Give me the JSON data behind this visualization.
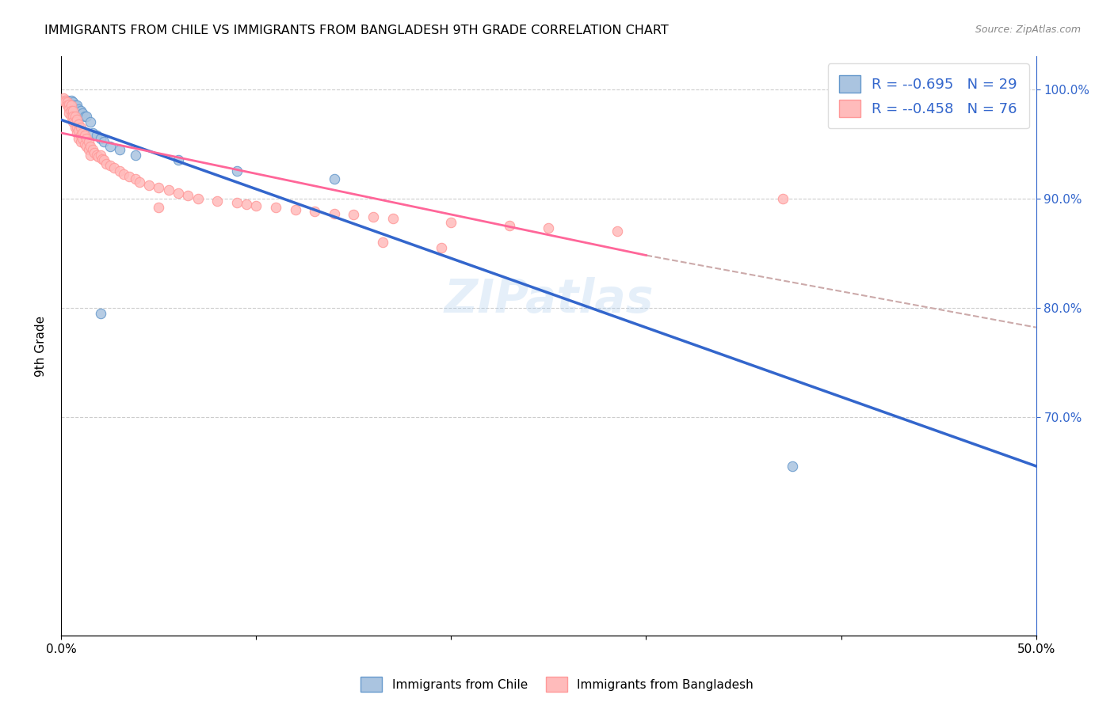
{
  "title": "IMMIGRANTS FROM CHILE VS IMMIGRANTS FROM BANGLADESH 9TH GRADE CORRELATION CHART",
  "source": "Source: ZipAtlas.com",
  "ylabel": "9th Grade",
  "xlim": [
    0.0,
    0.5
  ],
  "ylim": [
    0.5,
    1.03
  ],
  "x_ticks": [
    0.0,
    0.1,
    0.2,
    0.3,
    0.4,
    0.5
  ],
  "x_tick_labels": [
    "0.0%",
    "",
    "",
    "",
    "",
    "50.0%"
  ],
  "y_ticks_right": [
    0.7,
    0.8,
    0.9,
    1.0
  ],
  "y_tick_labels_right": [
    "70.0%",
    "80.0%",
    "90.0%",
    "100.0%"
  ],
  "legend_r_chile": "-0.695",
  "legend_n_chile": "N = 29",
  "legend_r_bangladesh": "-0.458",
  "legend_n_bangladesh": "N = 76",
  "color_chile_edge": "#6699CC",
  "color_chile_fill": "#aac4e0",
  "color_bangladesh_edge": "#FF9999",
  "color_bangladesh_fill": "#ffbbbb",
  "color_trendline_chile": "#3366CC",
  "color_trendline_bangladesh": "#FF6699",
  "color_dashed": "#ccaaaa",
  "color_right_axis": "#3366CC",
  "watermark": "ZIPatlas",
  "chile_points": [
    [
      0.002,
      0.99
    ],
    [
      0.003,
      0.99
    ],
    [
      0.004,
      0.988
    ],
    [
      0.005,
      0.99
    ],
    [
      0.005,
      0.985
    ],
    [
      0.006,
      0.988
    ],
    [
      0.006,
      0.985
    ],
    [
      0.007,
      0.985
    ],
    [
      0.007,
      0.982
    ],
    [
      0.008,
      0.985
    ],
    [
      0.008,
      0.98
    ],
    [
      0.009,
      0.982
    ],
    [
      0.01,
      0.98
    ],
    [
      0.011,
      0.978
    ],
    [
      0.012,
      0.975
    ],
    [
      0.013,
      0.975
    ],
    [
      0.015,
      0.97
    ],
    [
      0.016,
      0.96
    ],
    [
      0.018,
      0.958
    ],
    [
      0.02,
      0.955
    ],
    [
      0.022,
      0.952
    ],
    [
      0.025,
      0.948
    ],
    [
      0.03,
      0.945
    ],
    [
      0.038,
      0.94
    ],
    [
      0.06,
      0.935
    ],
    [
      0.09,
      0.925
    ],
    [
      0.14,
      0.918
    ],
    [
      0.02,
      0.795
    ],
    [
      0.375,
      0.655
    ]
  ],
  "bangladesh_points": [
    [
      0.001,
      0.992
    ],
    [
      0.002,
      0.99
    ],
    [
      0.002,
      0.988
    ],
    [
      0.003,
      0.988
    ],
    [
      0.003,
      0.985
    ],
    [
      0.004,
      0.986
    ],
    [
      0.004,
      0.982
    ],
    [
      0.004,
      0.978
    ],
    [
      0.005,
      0.985
    ],
    [
      0.005,
      0.98
    ],
    [
      0.005,
      0.975
    ],
    [
      0.006,
      0.98
    ],
    [
      0.006,
      0.975
    ],
    [
      0.006,
      0.97
    ],
    [
      0.007,
      0.975
    ],
    [
      0.007,
      0.97
    ],
    [
      0.007,
      0.965
    ],
    [
      0.008,
      0.972
    ],
    [
      0.008,
      0.965
    ],
    [
      0.008,
      0.96
    ],
    [
      0.009,
      0.968
    ],
    [
      0.009,
      0.962
    ],
    [
      0.009,
      0.955
    ],
    [
      0.01,
      0.965
    ],
    [
      0.01,
      0.958
    ],
    [
      0.01,
      0.952
    ],
    [
      0.011,
      0.96
    ],
    [
      0.011,
      0.955
    ],
    [
      0.012,
      0.958
    ],
    [
      0.012,
      0.95
    ],
    [
      0.013,
      0.955
    ],
    [
      0.013,
      0.948
    ],
    [
      0.014,
      0.952
    ],
    [
      0.014,
      0.945
    ],
    [
      0.015,
      0.948
    ],
    [
      0.015,
      0.94
    ],
    [
      0.016,
      0.945
    ],
    [
      0.017,
      0.942
    ],
    [
      0.018,
      0.94
    ],
    [
      0.019,
      0.938
    ],
    [
      0.02,
      0.94
    ],
    [
      0.021,
      0.936
    ],
    [
      0.022,
      0.935
    ],
    [
      0.023,
      0.932
    ],
    [
      0.025,
      0.93
    ],
    [
      0.027,
      0.928
    ],
    [
      0.03,
      0.925
    ],
    [
      0.032,
      0.922
    ],
    [
      0.035,
      0.92
    ],
    [
      0.038,
      0.918
    ],
    [
      0.04,
      0.915
    ],
    [
      0.045,
      0.912
    ],
    [
      0.05,
      0.91
    ],
    [
      0.055,
      0.908
    ],
    [
      0.06,
      0.905
    ],
    [
      0.065,
      0.903
    ],
    [
      0.07,
      0.9
    ],
    [
      0.08,
      0.898
    ],
    [
      0.09,
      0.896
    ],
    [
      0.095,
      0.895
    ],
    [
      0.1,
      0.893
    ],
    [
      0.11,
      0.892
    ],
    [
      0.12,
      0.89
    ],
    [
      0.13,
      0.888
    ],
    [
      0.14,
      0.886
    ],
    [
      0.15,
      0.885
    ],
    [
      0.16,
      0.883
    ],
    [
      0.17,
      0.882
    ],
    [
      0.05,
      0.892
    ],
    [
      0.2,
      0.878
    ],
    [
      0.23,
      0.875
    ],
    [
      0.25,
      0.873
    ],
    [
      0.165,
      0.86
    ],
    [
      0.195,
      0.855
    ],
    [
      0.285,
      0.87
    ],
    [
      0.37,
      0.9
    ]
  ]
}
